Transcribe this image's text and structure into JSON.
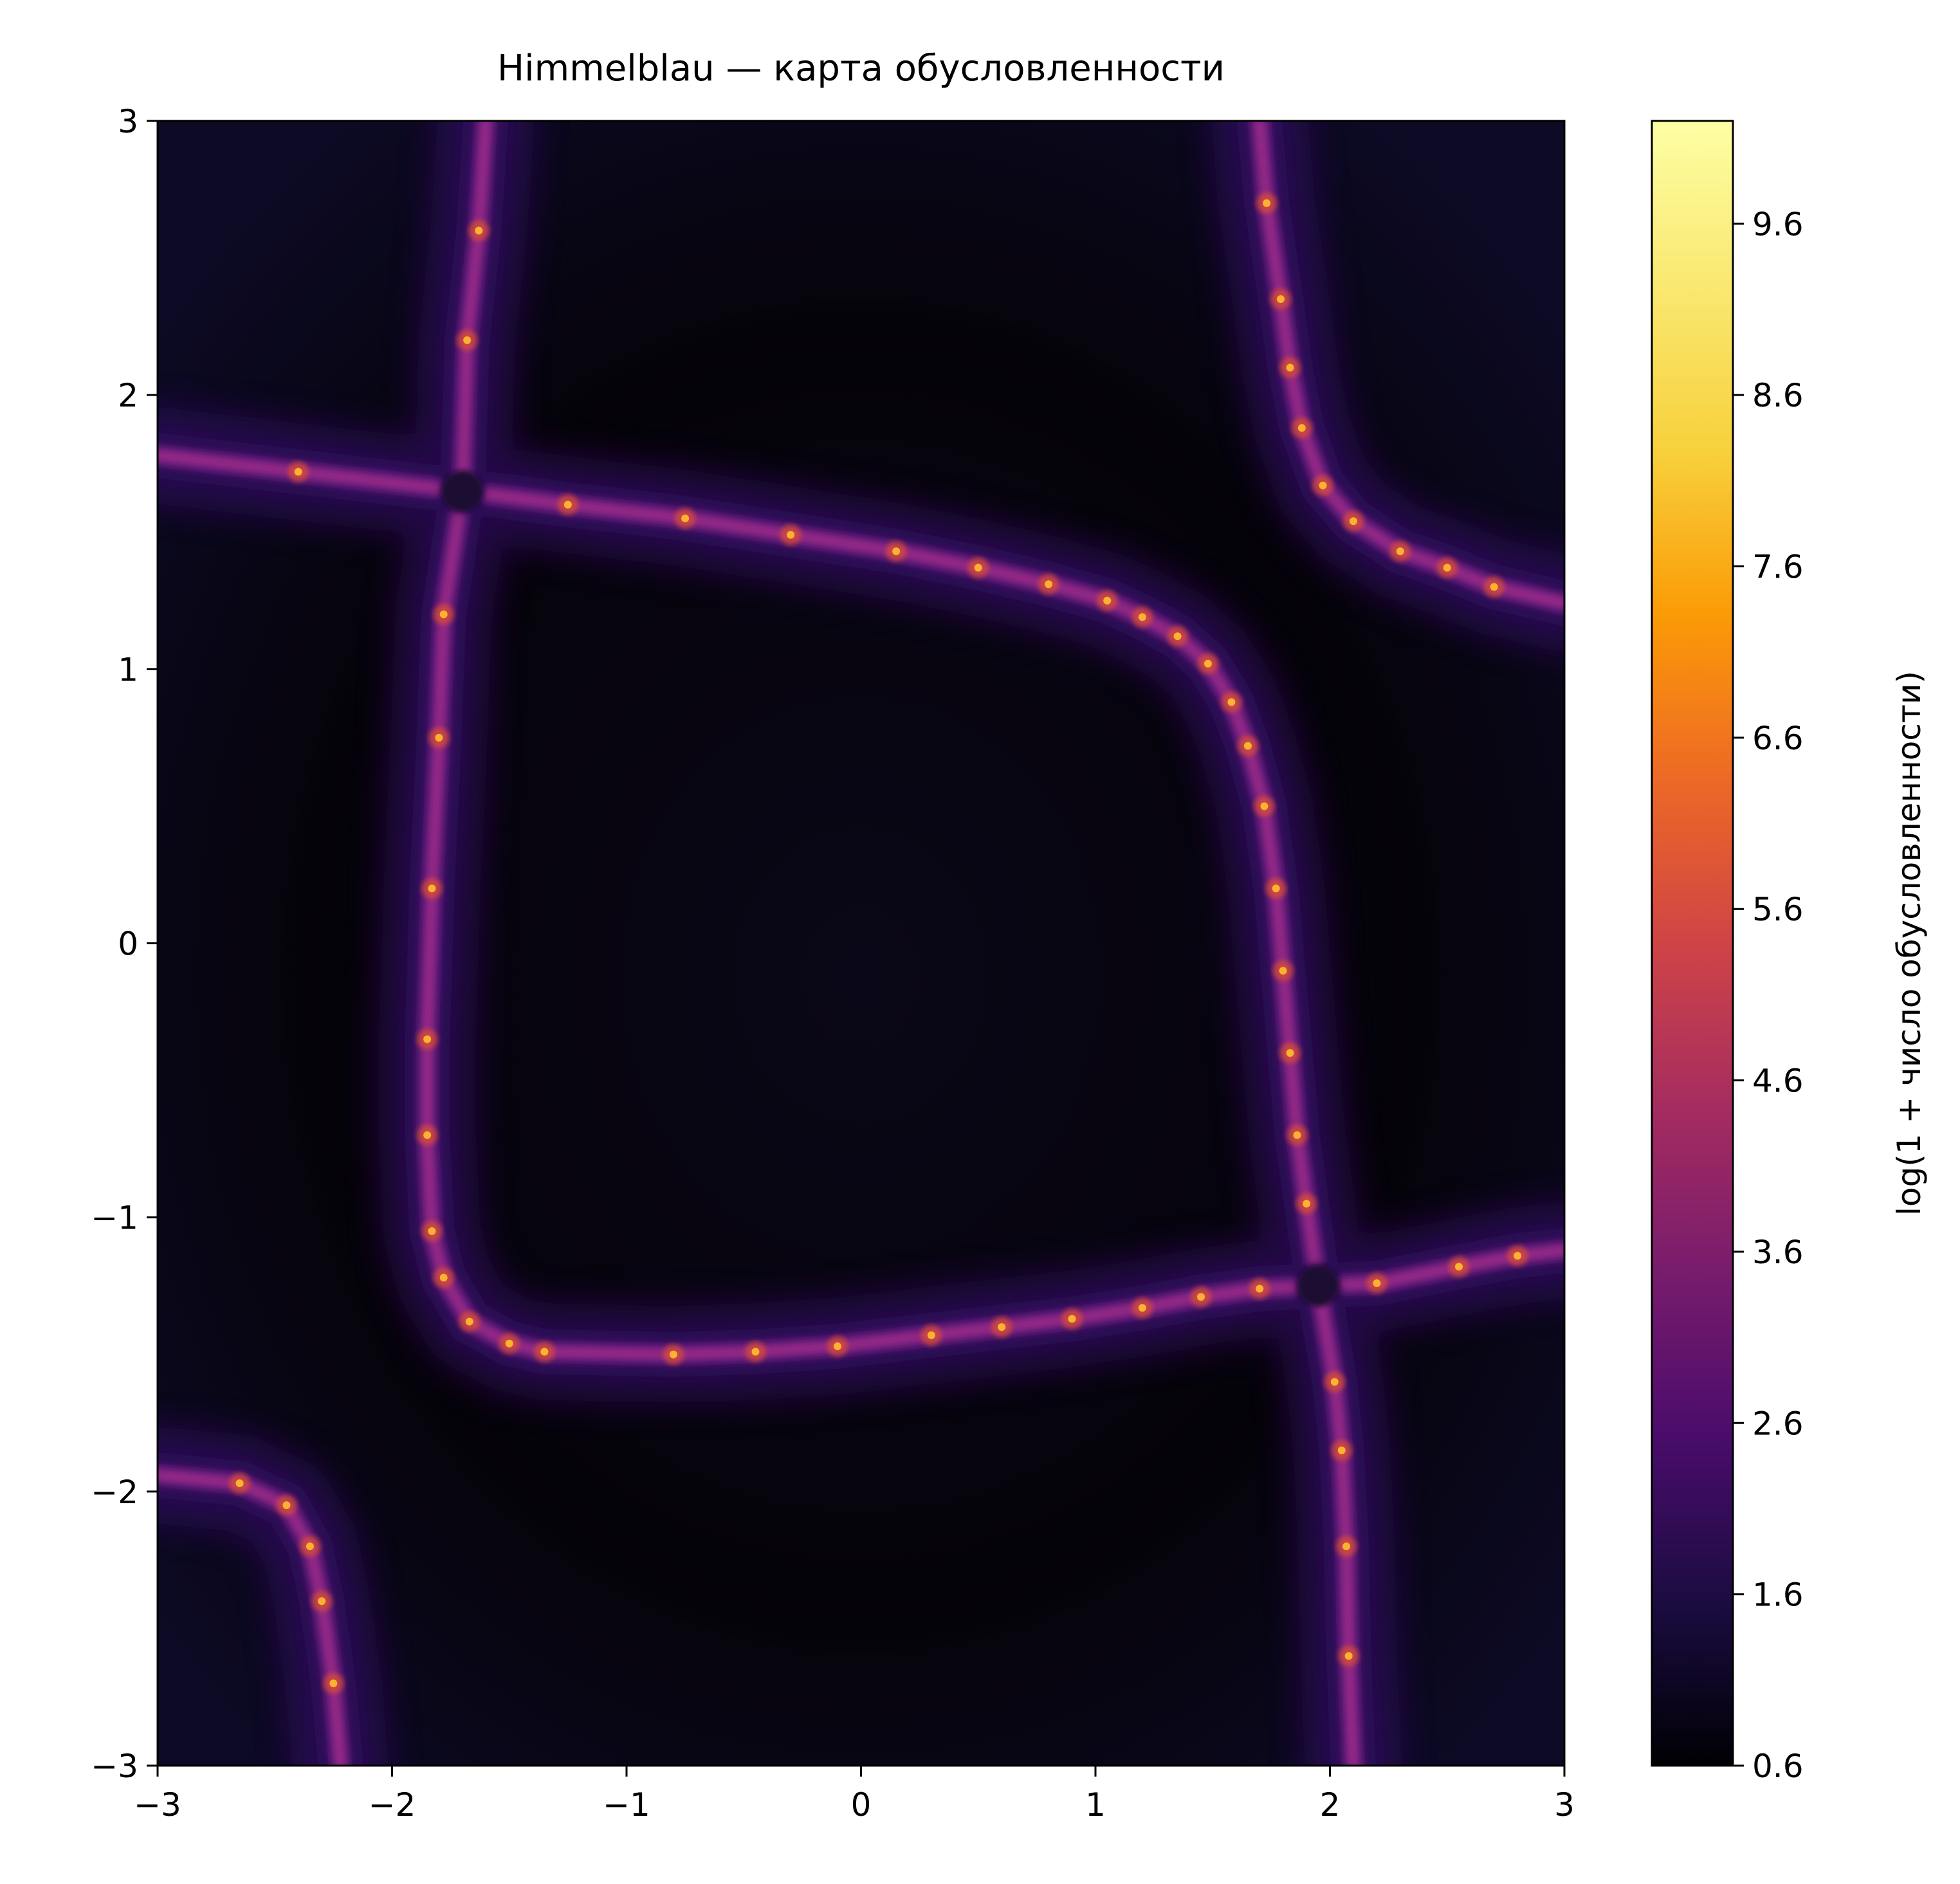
{
  "chart_data": {
    "type": "heatmap",
    "title": "Himmelblau — карта обусловленности",
    "xlabel": "",
    "ylabel": "",
    "xlim": [
      -3,
      3
    ],
    "ylim": [
      -3,
      3
    ],
    "x_ticks": [
      -3,
      -2,
      -1,
      0,
      1,
      2,
      3
    ],
    "y_ticks": [
      -3,
      -2,
      -1,
      0,
      1,
      2,
      3
    ],
    "x_tick_labels": [
      "−3",
      "−2",
      "−1",
      "0",
      "1",
      "2",
      "3"
    ],
    "y_tick_labels": [
      "−3",
      "−2",
      "−1",
      "0",
      "1",
      "2",
      "3"
    ],
    "colormap": "inferno",
    "colorbar": {
      "label": "log(1 + число обусловленности)",
      "range": [
        0.6,
        10.2
      ],
      "ticks": [
        0.6,
        1.6,
        2.6,
        3.6,
        4.6,
        5.6,
        6.6,
        7.6,
        8.6,
        9.6
      ],
      "tick_labels": [
        "0.6",
        "1.6",
        "2.6",
        "3.6",
        "4.6",
        "5.6",
        "6.6",
        "7.6",
        "8.6",
        "9.6"
      ]
    },
    "singular_points": [
      {
        "x": -1.7,
        "y": 1.65
      },
      {
        "x": 1.95,
        "y": -1.25
      }
    ],
    "ridges": [
      {
        "points": [
          [
            -3,
            1.78
          ],
          [
            -2.4,
            1.72
          ],
          [
            -1.7,
            1.65
          ],
          [
            -1.25,
            1.6
          ],
          [
            -0.75,
            1.55
          ],
          [
            -0.3,
            1.49
          ],
          [
            0.15,
            1.43
          ],
          [
            0.5,
            1.37
          ],
          [
            0.8,
            1.31
          ],
          [
            1.05,
            1.25
          ],
          [
            1.2,
            1.19
          ],
          [
            1.35,
            1.12
          ],
          [
            1.48,
            1.02
          ],
          [
            1.58,
            0.88
          ],
          [
            1.65,
            0.72
          ],
          [
            1.72,
            0.5
          ],
          [
            1.77,
            0.2
          ],
          [
            1.8,
            -0.1
          ],
          [
            1.83,
            -0.4
          ],
          [
            1.86,
            -0.7
          ],
          [
            1.9,
            -0.95
          ],
          [
            1.95,
            -1.25
          ]
        ]
      },
      {
        "points": [
          [
            -1.7,
            1.65
          ],
          [
            -1.78,
            1.2
          ],
          [
            -1.8,
            0.75
          ],
          [
            -1.83,
            0.2
          ],
          [
            -1.85,
            -0.35
          ],
          [
            -1.85,
            -0.7
          ],
          [
            -1.83,
            -1.05
          ],
          [
            -1.78,
            -1.22
          ],
          [
            -1.67,
            -1.38
          ],
          [
            -1.5,
            -1.46
          ],
          [
            -1.35,
            -1.49
          ],
          [
            -0.8,
            -1.5
          ],
          [
            -0.45,
            -1.49
          ],
          [
            -0.1,
            -1.47
          ],
          [
            0.3,
            -1.43
          ],
          [
            0.6,
            -1.4
          ],
          [
            0.9,
            -1.37
          ],
          [
            1.2,
            -1.33
          ],
          [
            1.45,
            -1.29
          ],
          [
            1.7,
            -1.26
          ],
          [
            1.95,
            -1.25
          ]
        ]
      },
      {
        "points": [
          [
            1.95,
            -1.25
          ],
          [
            2.2,
            -1.24
          ],
          [
            2.55,
            -1.18
          ],
          [
            2.8,
            -1.14
          ],
          [
            3,
            -1.12
          ]
        ]
      },
      {
        "points": [
          [
            1.95,
            -1.25
          ],
          [
            2.02,
            -1.6
          ],
          [
            2.05,
            -1.85
          ],
          [
            2.07,
            -2.2
          ],
          [
            2.08,
            -2.6
          ],
          [
            2.1,
            -3
          ]
        ]
      },
      {
        "points": [
          [
            -1.7,
            1.65
          ],
          [
            -1.68,
            2.2
          ],
          [
            -1.63,
            2.6
          ],
          [
            -1.6,
            3
          ]
        ]
      },
      {
        "points": [
          [
            1.7,
            3
          ],
          [
            1.73,
            2.7
          ],
          [
            1.79,
            2.35
          ],
          [
            1.83,
            2.1
          ],
          [
            1.88,
            1.88
          ],
          [
            1.97,
            1.67
          ],
          [
            2.1,
            1.54
          ],
          [
            2.3,
            1.43
          ],
          [
            2.5,
            1.37
          ],
          [
            2.7,
            1.3
          ],
          [
            3,
            1.24
          ]
        ]
      },
      {
        "points": [
          [
            -3,
            -1.94
          ],
          [
            -2.65,
            -1.97
          ],
          [
            -2.45,
            -2.05
          ],
          [
            -2.35,
            -2.2
          ],
          [
            -2.3,
            -2.4
          ],
          [
            -2.25,
            -2.7
          ],
          [
            -2.22,
            -3
          ]
        ]
      }
    ],
    "grid": false,
    "legend": "none"
  }
}
